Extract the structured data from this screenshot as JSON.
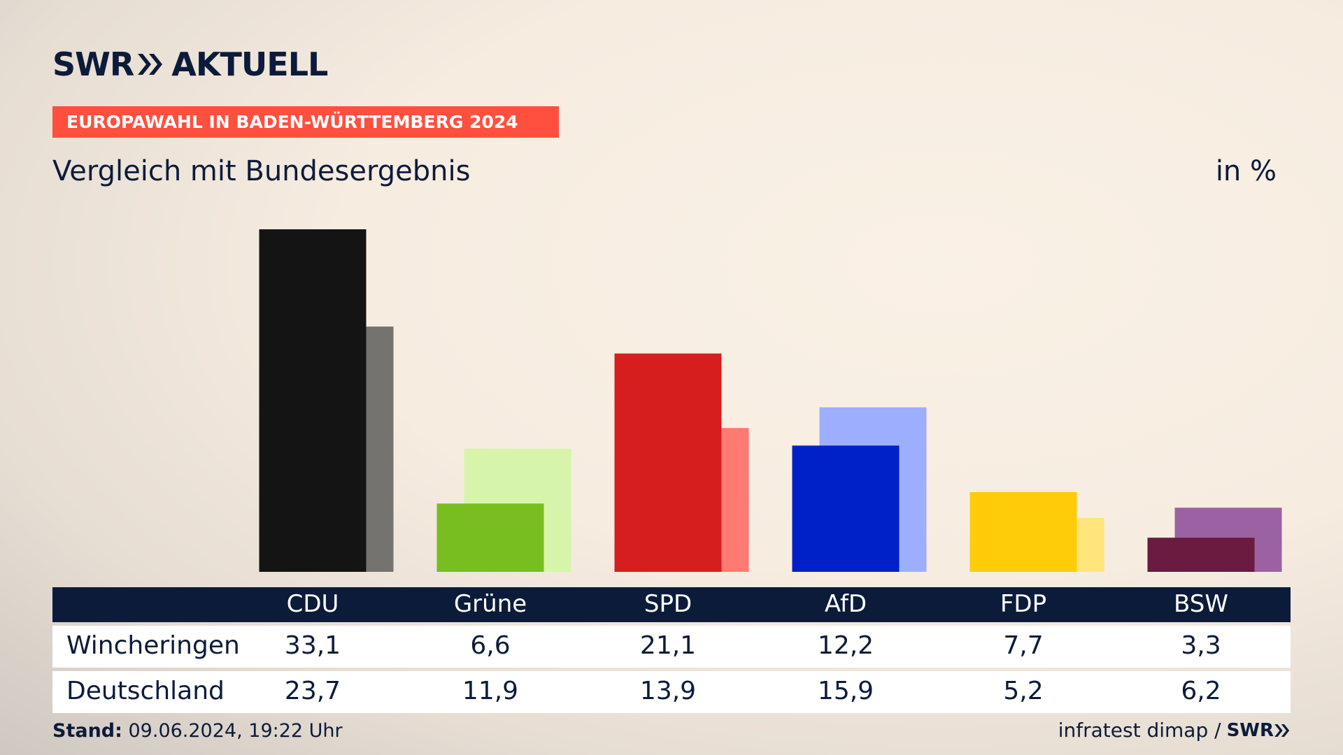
{
  "header": {
    "logo_swr": "SWR",
    "logo_aktuell": "AKTUELL",
    "banner": "EUROPAWAHL IN BADEN-WÜRTTEMBERG 2024",
    "subtitle": "Vergleich mit Bundesergebnis",
    "unit": "in %"
  },
  "chart_data": {
    "type": "bar",
    "categories": [
      "CDU",
      "Grüne",
      "SPD",
      "AfD",
      "FDP",
      "BSW"
    ],
    "series": [
      {
        "name": "Wincheringen",
        "values": [
          33.1,
          6.6,
          21.1,
          12.2,
          7.7,
          3.3
        ],
        "colors": [
          "#141414",
          "#78be1e",
          "#d61e1e",
          "#0020c8",
          "#ffcc0a",
          "#6b1a40"
        ]
      },
      {
        "name": "Deutschland",
        "values": [
          23.7,
          11.9,
          13.9,
          15.9,
          5.2,
          6.2
        ],
        "colors": [
          "#757370",
          "#d6f5aa",
          "#ff7a72",
          "#9eaeff",
          "#ffe57a",
          "#9a62a0"
        ]
      }
    ],
    "value_labels": {
      "Wincheringen": [
        "33,1",
        "6,6",
        "21,1",
        "12,2",
        "7,7",
        "3,3"
      ],
      "Deutschland": [
        "23,7",
        "11,9",
        "13,9",
        "15,9",
        "5,2",
        "6,2"
      ]
    },
    "ylim": [
      0,
      33.1
    ],
    "grid": false,
    "legend": "table-below"
  },
  "footer": {
    "stand_label": "Stand:",
    "stand_value": " 09.06.2024, 19:22 Uhr",
    "source": "infratest dimap /",
    "source_logo": "SWR"
  },
  "colors": {
    "navy": "#0c1b3a",
    "banner": "#ff4f3f"
  }
}
